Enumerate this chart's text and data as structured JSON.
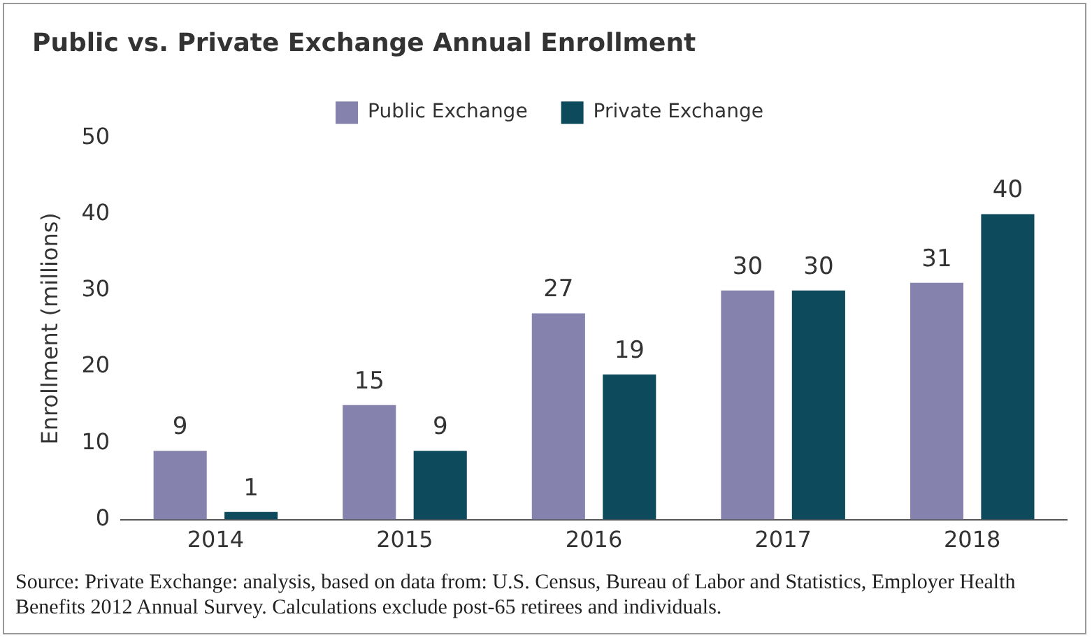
{
  "chart_data": {
    "type": "bar",
    "title": "Public vs. Private Exchange Annual Enrollment",
    "ylabel": "Enrollment (millions)",
    "categories": [
      "2014",
      "2015",
      "2016",
      "2017",
      "2018"
    ],
    "series": [
      {
        "name": "Public Exchange",
        "color": "#8582ad",
        "values": [
          9,
          15,
          27,
          30,
          31
        ]
      },
      {
        "name": "Private Exchange",
        "color": "#0c4a5c",
        "values": [
          1,
          9,
          19,
          30,
          40
        ]
      }
    ],
    "ylim": [
      0,
      50
    ],
    "yticks": [
      0,
      10,
      20,
      30,
      40,
      50
    ],
    "grid": false,
    "legend": "top",
    "data_labels": true,
    "annotations": [
      "Source: Private Exchange: analysis, based on data from: U.S. Census, Bureau of Labor and Statistics, Employer Health Benefits 2012 Annual Survey. Calculations exclude post-65 retirees and individuals."
    ]
  }
}
